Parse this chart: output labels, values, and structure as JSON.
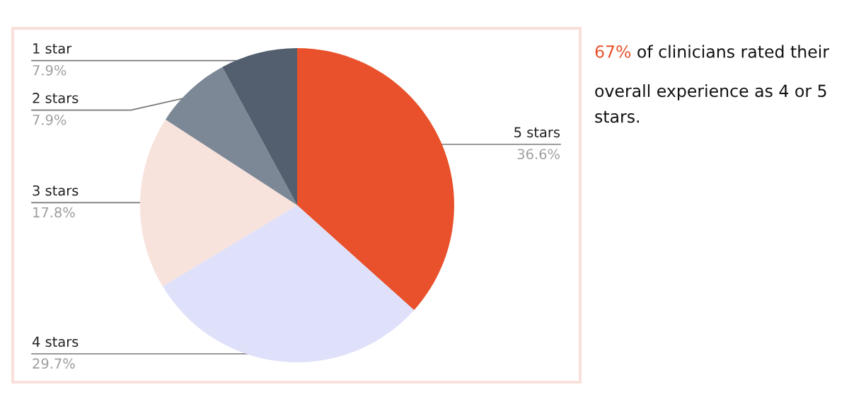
{
  "chart_data": {
    "type": "pie",
    "categories": [
      "5 stars",
      "4 stars",
      "3 stars",
      "2 stars",
      "1 star"
    ],
    "values": [
      36.6,
      29.7,
      17.8,
      7.9,
      7.9
    ],
    "colors": [
      "#e8512b",
      "#dfe1fa",
      "#f8e2dc",
      "#7d8896",
      "#535f6e"
    ],
    "value_labels": [
      "36.6%",
      "29.7%",
      "17.8%",
      "7.9%",
      "7.9%"
    ],
    "annotations": [
      "67%",
      "of clinicians rated their overall experience as 4 or 5 stars."
    ],
    "legend": false
  }
}
